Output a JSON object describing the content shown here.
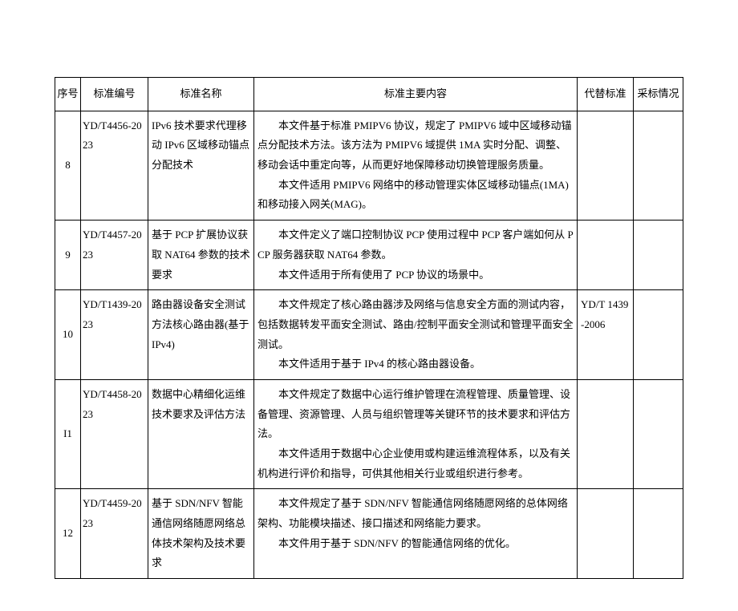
{
  "columns": {
    "seq": "序号",
    "code": "标准编号",
    "name": "标准名称",
    "content": "标准主要内容",
    "replace": "代替标准",
    "adopt": "采标情况"
  },
  "rows": [
    {
      "seq": "8",
      "code": "YD/T4456-2023",
      "name": "IPv6 技术要求代理移动 IPv6 区域移动锚点分配技术",
      "content_p1": "本文件基于标准 PMIPV6 协议，规定了 PMIPV6 域中区域移动锚点分配技术方法。该方法为 PMIPV6 域提供 1MA 实时分配、调整、移动会话中重定向等，从而更好地保障移动切换管理服务质量。",
      "content_p2": "本文件适用 PMIPV6 网络中的移动管理实体区域移动锚点(1MA)和移动接入网关(MAG)。",
      "replace": "",
      "adopt": ""
    },
    {
      "seq": "9",
      "code": "YD/T4457-2023",
      "name": "基于 PCP 扩展协议获取 NAT64 参数的技术要求",
      "content_p1": "本文件定义了端口控制协议 PCP 使用过程中 PCP 客户端如何从 PCP 服务器获取 NAT64 参数。",
      "content_p2": "本文件适用于所有使用了 PCP 协议的场景中。",
      "replace": "",
      "adopt": ""
    },
    {
      "seq": "10",
      "code": "YD/T1439-2023",
      "name": "路由器设备安全测试方法核心路由器(基于 IPv4)",
      "content_p1": "",
      "content_p2": "本文件规定了核心路由器涉及网络与信息安全方面的测试内容，包括数据转发平面安全测试、路由/控制平面安全测试和管理平面安全测试。",
      "content_p3": "本文件适用于基于 IPv4 的核心路由器设备。",
      "replace": "YD/T 1439-2006",
      "adopt": ""
    },
    {
      "seq": "I1",
      "code": "YD/T4458-2023",
      "name": "数据中心精细化运维技术要求及评估方法",
      "content_p1": "",
      "content_p2": "本文件规定了数据中心运行维护管理在流程管理、质量管理、设备管理、资源管理、人员与组织管理等关键环节的技术要求和评估方法。",
      "content_p3": "本文件适用于数据中心企业使用或构建运维流程体系，以及有关机构进行评价和指导，可供其他相关行业或组织进行参考。",
      "replace": "",
      "adopt": ""
    },
    {
      "seq": "12",
      "code": "YD/T4459-2023",
      "name": "基于 SDN/NFV 智能通信网络随愿网络总体技术架构及技术要求",
      "content_p1": "本文件规定了基于 SDN/NFV 智能通信网络随愿网络的总体网络架构、功能模块描述、接口描述和网络能力要求。",
      "content_p2": "本文件用于基于 SDN/NFV 的智能通信网络的优化。",
      "replace": "",
      "adopt": ""
    }
  ]
}
